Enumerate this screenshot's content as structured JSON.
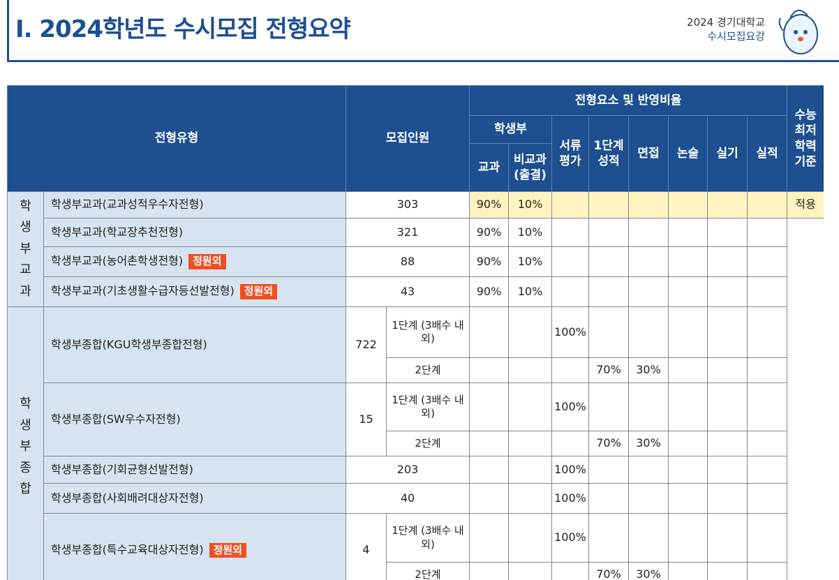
{
  "header": {
    "title": "I. 2024학년도 수시모집 전형요약",
    "brand_line1": "2024 경기대학교",
    "brand_line2": "수시모집요강"
  },
  "table": {
    "head": {
      "type": "전형유형",
      "quota": "모집인원",
      "factors": "전형요소 및 반영비율",
      "record": "학생부",
      "factor_columns": [
        "교과",
        "비교과 (출결)",
        "서류 평가",
        "1단계 성적",
        "면접",
        "논술",
        "실기",
        "실적"
      ],
      "csat": "수능 최저 학력 기준"
    },
    "groups": [
      {
        "label": "학생부교과",
        "rows": [
          {
            "name": "학생부교과(교과성적우수자전형)",
            "quota": 303,
            "values": [
              "90%",
              "10%",
              null,
              null,
              null,
              null,
              null,
              null
            ],
            "csat": "적용"
          },
          {
            "name": "학생부교과(학교장추천전형)",
            "quota": 321,
            "values": [
              "90%",
              "10%",
              null,
              null,
              null,
              null,
              null,
              null
            ]
          },
          {
            "name": "학생부교과(농어촌학생전형)",
            "badge": "정원외",
            "quota": 88,
            "values": [
              "90%",
              "10%",
              null,
              null,
              null,
              null,
              null,
              null
            ]
          },
          {
            "name": "학생부교과(기초생활수급자등선발전형)",
            "badge": "정원외",
            "quota": 43,
            "values": [
              "90%",
              "10%",
              null,
              null,
              null,
              null,
              null,
              null
            ]
          }
        ]
      },
      {
        "label": "학생부종합",
        "rows": [
          {
            "name": "학생부종합(KGU학생부종합전형)",
            "quota": 722,
            "stages": [
              {
                "stage": "1단계 (3배수 내외)",
                "values": [
                  null,
                  null,
                  "100%",
                  null,
                  null,
                  null,
                  null,
                  null
                ]
              },
              {
                "stage": "2단계",
                "values": [
                  null,
                  null,
                  null,
                  "70%",
                  "30%",
                  null,
                  null,
                  null
                ]
              }
            ]
          },
          {
            "name": "학생부종합(SW우수자전형)",
            "quota": 15,
            "stages": [
              {
                "stage": "1단계 (3배수 내외)",
                "values": [
                  null,
                  null,
                  "100%",
                  null,
                  null,
                  null,
                  null,
                  null
                ]
              },
              {
                "stage": "2단계",
                "values": [
                  null,
                  null,
                  null,
                  "70%",
                  "30%",
                  null,
                  null,
                  null
                ]
              }
            ]
          },
          {
            "name": "학생부종합(기회균형선발전형)",
            "quota": 203,
            "values": [
              null,
              null,
              "100%",
              null,
              null,
              null,
              null,
              null
            ]
          },
          {
            "name": "학생부종합(사회배려대상자전형)",
            "quota": 40,
            "values": [
              null,
              null,
              "100%",
              null,
              null,
              null,
              null,
              null
            ]
          },
          {
            "name": "학생부종합(특수교육대상자전형)",
            "badge": "정원외",
            "quota": 4,
            "stages": [
              {
                "stage": "1단계 (3배수 내외)",
                "values": [
                  null,
                  null,
                  "100%",
                  null,
                  null,
                  null,
                  null,
                  null
                ]
              },
              {
                "stage": "2단계",
                "values": [
                  null,
                  null,
                  null,
                  "70%",
                  "30%",
                  null,
                  null,
                  null
                ]
              }
            ]
          }
        ]
      }
    ]
  }
}
